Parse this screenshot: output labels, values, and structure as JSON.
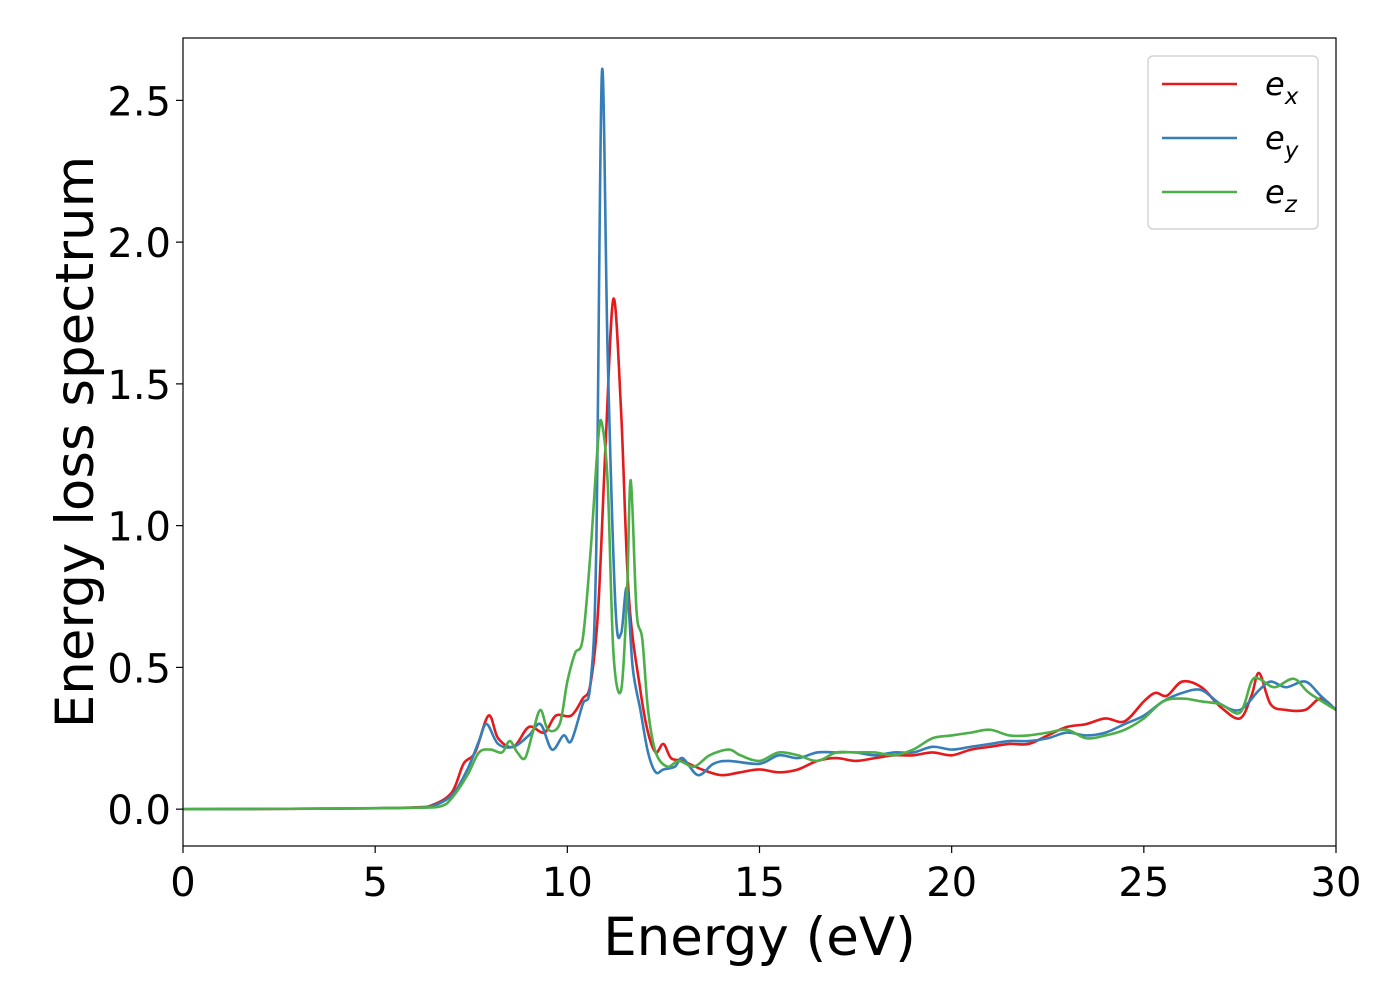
{
  "chart_data": {
    "type": "line",
    "title": "",
    "xlabel": "Energy (eV)",
    "ylabel": "Energy loss spectrum",
    "xlim": [
      0,
      30
    ],
    "ylim": [
      -0.13,
      2.72
    ],
    "xticks": [
      0,
      5,
      10,
      15,
      20,
      25,
      30
    ],
    "xtick_labels": [
      "0",
      "5",
      "10",
      "15",
      "20",
      "25",
      "30"
    ],
    "yticks": [
      0.0,
      0.5,
      1.0,
      1.5,
      2.0,
      2.5
    ],
    "ytick_labels": [
      "0.0",
      "0.5",
      "1.0",
      "1.5",
      "2.0",
      "2.5"
    ],
    "grid": false,
    "legend_position": "top-right",
    "series": [
      {
        "name": "e_x",
        "label_base": "e",
        "label_sub": "x",
        "color": "#e41a1c",
        "points": [
          [
            0,
            0
          ],
          [
            4,
            0.002
          ],
          [
            6,
            0.006
          ],
          [
            6.5,
            0.015
          ],
          [
            7,
            0.06
          ],
          [
            7.3,
            0.16
          ],
          [
            7.6,
            0.2
          ],
          [
            7.95,
            0.33
          ],
          [
            8.2,
            0.25
          ],
          [
            8.6,
            0.22
          ],
          [
            9,
            0.29
          ],
          [
            9.4,
            0.27
          ],
          [
            9.7,
            0.33
          ],
          [
            10.1,
            0.33
          ],
          [
            10.4,
            0.39
          ],
          [
            10.6,
            0.44
          ],
          [
            10.8,
            0.7
          ],
          [
            11,
            1.3
          ],
          [
            11.2,
            1.8
          ],
          [
            11.4,
            1.4
          ],
          [
            11.6,
            0.75
          ],
          [
            11.9,
            0.42
          ],
          [
            12.1,
            0.27
          ],
          [
            12.3,
            0.2
          ],
          [
            12.5,
            0.23
          ],
          [
            12.7,
            0.18
          ],
          [
            13,
            0.17
          ],
          [
            13.5,
            0.14
          ],
          [
            14,
            0.12
          ],
          [
            14.5,
            0.13
          ],
          [
            15,
            0.14
          ],
          [
            15.5,
            0.13
          ],
          [
            16,
            0.14
          ],
          [
            16.5,
            0.17
          ],
          [
            17,
            0.18
          ],
          [
            17.5,
            0.17
          ],
          [
            18,
            0.18
          ],
          [
            18.5,
            0.19
          ],
          [
            19,
            0.19
          ],
          [
            19.5,
            0.2
          ],
          [
            20,
            0.19
          ],
          [
            20.5,
            0.21
          ],
          [
            21,
            0.22
          ],
          [
            21.5,
            0.23
          ],
          [
            22,
            0.23
          ],
          [
            22.5,
            0.26
          ],
          [
            23,
            0.29
          ],
          [
            23.5,
            0.3
          ],
          [
            24,
            0.32
          ],
          [
            24.5,
            0.31
          ],
          [
            25,
            0.38
          ],
          [
            25.3,
            0.41
          ],
          [
            25.6,
            0.4
          ],
          [
            26,
            0.45
          ],
          [
            26.5,
            0.43
          ],
          [
            27,
            0.36
          ],
          [
            27.5,
            0.32
          ],
          [
            27.8,
            0.4
          ],
          [
            28,
            0.48
          ],
          [
            28.3,
            0.37
          ],
          [
            28.7,
            0.35
          ],
          [
            29.2,
            0.35
          ],
          [
            29.6,
            0.39
          ],
          [
            30,
            0.35
          ]
        ]
      },
      {
        "name": "e_y",
        "label_base": "e",
        "label_sub": "y",
        "color": "#377eb8",
        "points": [
          [
            0,
            0
          ],
          [
            4,
            0.002
          ],
          [
            6,
            0.005
          ],
          [
            6.5,
            0.012
          ],
          [
            7,
            0.05
          ],
          [
            7.4,
            0.14
          ],
          [
            7.7,
            0.24
          ],
          [
            7.9,
            0.3
          ],
          [
            8.2,
            0.23
          ],
          [
            8.6,
            0.22
          ],
          [
            9,
            0.26
          ],
          [
            9.3,
            0.3
          ],
          [
            9.6,
            0.21
          ],
          [
            9.9,
            0.26
          ],
          [
            10.1,
            0.24
          ],
          [
            10.4,
            0.37
          ],
          [
            10.6,
            0.44
          ],
          [
            10.75,
            0.9
          ],
          [
            10.9,
            2.6
          ],
          [
            11.05,
            1.6
          ],
          [
            11.25,
            0.72
          ],
          [
            11.4,
            0.62
          ],
          [
            11.55,
            0.78
          ],
          [
            11.7,
            0.5
          ],
          [
            11.9,
            0.35
          ],
          [
            12.1,
            0.2
          ],
          [
            12.3,
            0.13
          ],
          [
            12.5,
            0.14
          ],
          [
            12.8,
            0.15
          ],
          [
            13,
            0.18
          ],
          [
            13.4,
            0.12
          ],
          [
            13.8,
            0.16
          ],
          [
            14.2,
            0.17
          ],
          [
            15,
            0.16
          ],
          [
            15.5,
            0.19
          ],
          [
            16,
            0.18
          ],
          [
            16.5,
            0.2
          ],
          [
            17,
            0.2
          ],
          [
            17.5,
            0.2
          ],
          [
            18,
            0.19
          ],
          [
            18.5,
            0.2
          ],
          [
            19,
            0.2
          ],
          [
            19.5,
            0.22
          ],
          [
            20,
            0.21
          ],
          [
            20.5,
            0.22
          ],
          [
            21,
            0.23
          ],
          [
            21.5,
            0.24
          ],
          [
            22,
            0.24
          ],
          [
            22.5,
            0.25
          ],
          [
            23,
            0.27
          ],
          [
            23.5,
            0.26
          ],
          [
            24,
            0.27
          ],
          [
            24.5,
            0.3
          ],
          [
            25,
            0.33
          ],
          [
            25.5,
            0.38
          ],
          [
            26,
            0.41
          ],
          [
            26.5,
            0.42
          ],
          [
            27,
            0.37
          ],
          [
            27.5,
            0.35
          ],
          [
            28,
            0.42
          ],
          [
            28.3,
            0.45
          ],
          [
            28.7,
            0.43
          ],
          [
            29.2,
            0.45
          ],
          [
            29.6,
            0.4
          ],
          [
            30,
            0.35
          ]
        ]
      },
      {
        "name": "e_z",
        "label_base": "e",
        "label_sub": "z",
        "color": "#4daf4a",
        "points": [
          [
            0,
            0
          ],
          [
            4,
            0.002
          ],
          [
            6,
            0.005
          ],
          [
            6.7,
            0.01
          ],
          [
            7,
            0.04
          ],
          [
            7.4,
            0.12
          ],
          [
            7.7,
            0.2
          ],
          [
            8,
            0.21
          ],
          [
            8.3,
            0.2
          ],
          [
            8.5,
            0.24
          ],
          [
            8.7,
            0.2
          ],
          [
            8.9,
            0.18
          ],
          [
            9.1,
            0.27
          ],
          [
            9.3,
            0.35
          ],
          [
            9.5,
            0.28
          ],
          [
            9.8,
            0.3
          ],
          [
            10,
            0.45
          ],
          [
            10.2,
            0.55
          ],
          [
            10.4,
            0.6
          ],
          [
            10.6,
            0.9
          ],
          [
            10.8,
            1.3
          ],
          [
            10.9,
            1.36
          ],
          [
            11.05,
            1.15
          ],
          [
            11.2,
            0.55
          ],
          [
            11.4,
            0.42
          ],
          [
            11.55,
            0.75
          ],
          [
            11.65,
            1.16
          ],
          [
            11.8,
            0.7
          ],
          [
            11.95,
            0.6
          ],
          [
            12.1,
            0.35
          ],
          [
            12.3,
            0.2
          ],
          [
            12.6,
            0.15
          ],
          [
            12.9,
            0.17
          ],
          [
            13.3,
            0.15
          ],
          [
            13.7,
            0.19
          ],
          [
            14.2,
            0.21
          ],
          [
            14.5,
            0.19
          ],
          [
            15,
            0.17
          ],
          [
            15.5,
            0.2
          ],
          [
            16,
            0.19
          ],
          [
            16.5,
            0.17
          ],
          [
            17,
            0.2
          ],
          [
            17.5,
            0.2
          ],
          [
            18,
            0.2
          ],
          [
            18.5,
            0.19
          ],
          [
            19,
            0.21
          ],
          [
            19.5,
            0.25
          ],
          [
            20,
            0.26
          ],
          [
            20.5,
            0.27
          ],
          [
            21,
            0.28
          ],
          [
            21.5,
            0.26
          ],
          [
            22,
            0.26
          ],
          [
            22.5,
            0.27
          ],
          [
            23,
            0.28
          ],
          [
            23.5,
            0.25
          ],
          [
            24,
            0.26
          ],
          [
            24.5,
            0.28
          ],
          [
            25,
            0.32
          ],
          [
            25.5,
            0.38
          ],
          [
            26,
            0.39
          ],
          [
            26.5,
            0.38
          ],
          [
            27,
            0.37
          ],
          [
            27.5,
            0.34
          ],
          [
            27.8,
            0.45
          ],
          [
            28,
            0.46
          ],
          [
            28.4,
            0.43
          ],
          [
            28.9,
            0.46
          ],
          [
            29.3,
            0.41
          ],
          [
            30,
            0.35
          ]
        ]
      }
    ]
  }
}
